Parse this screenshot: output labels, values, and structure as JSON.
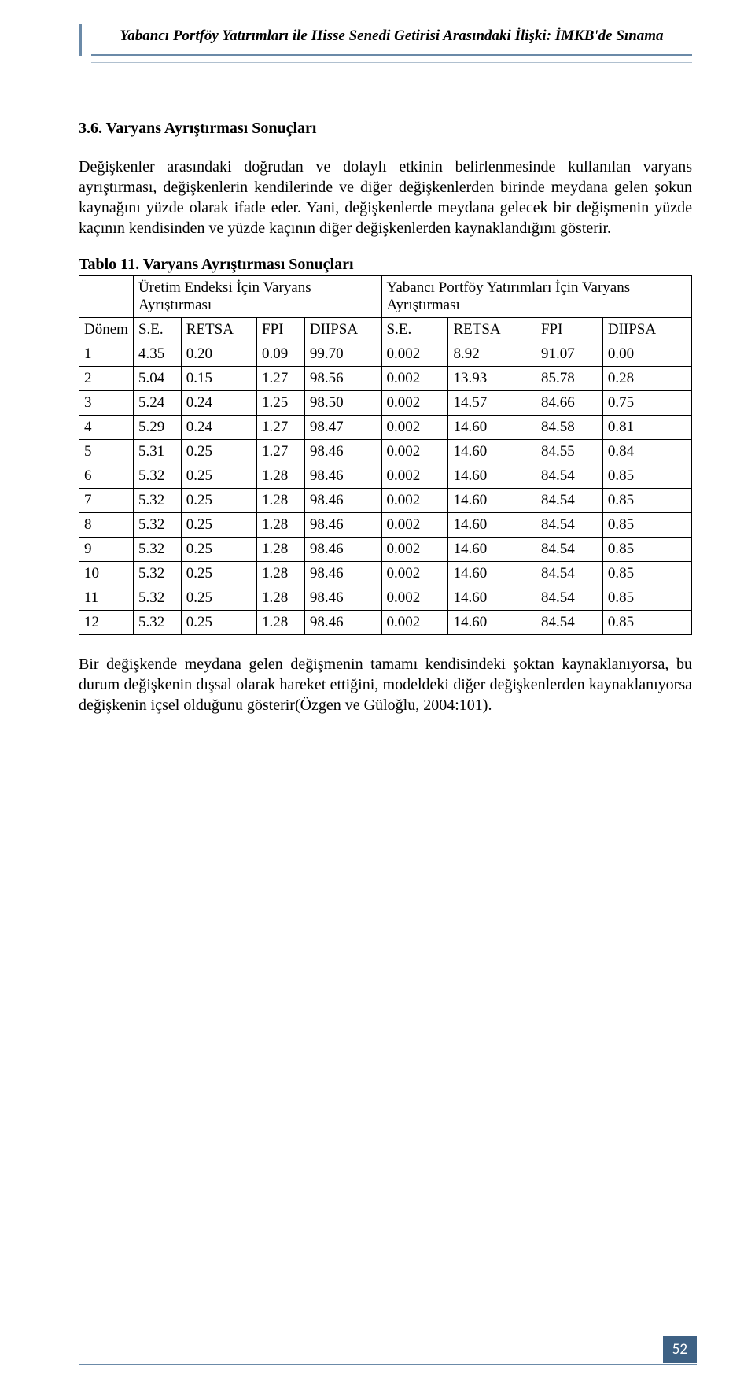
{
  "header": {
    "title": "Yabancı Portföy Yatırımları ile Hisse Senedi Getirisi Arasındaki İlişki: İMKB'de Sınama"
  },
  "section": {
    "heading": "3.6. Varyans Ayrıştırması Sonuçları"
  },
  "para1": "Değişkenler arasındaki doğrudan ve dolaylı etkinin belirlenmesinde kullanılan varyans ayrıştırması, değişkenlerin kendilerinde ve diğer değişkenlerden birinde meydana gelen şokun kaynağını yüzde olarak ifade eder. Yani, değişkenlerde meydana gelecek bir değişmenin yüzde kaçının kendisinden ve yüzde kaçının diğer değişkenlerden kaynaklandığını gösterir.",
  "table": {
    "caption": "Tablo 11.  Varyans Ayrıştırması Sonuçları",
    "group_headers": [
      "Üretim Endeksi İçin Varyans Ayrıştırması",
      "Yabancı Portföy Yatırımları İçin Varyans Ayrıştırması"
    ],
    "col_labels": [
      "Dönem",
      "S.E.",
      "RETSA",
      "FPI",
      "DIIPSA",
      "S.E.",
      "RETSA",
      "FPI",
      "DIIPSA"
    ],
    "rows": [
      [
        "1",
        "4.35",
        "0.20",
        "0.09",
        "99.70",
        "0.002",
        "8.92",
        "91.07",
        "0.00"
      ],
      [
        "2",
        "5.04",
        "0.15",
        "1.27",
        "98.56",
        "0.002",
        "13.93",
        "85.78",
        "0.28"
      ],
      [
        "3",
        "5.24",
        "0.24",
        "1.25",
        "98.50",
        "0.002",
        "14.57",
        "84.66",
        "0.75"
      ],
      [
        "4",
        "5.29",
        "0.24",
        "1.27",
        "98.47",
        "0.002",
        "14.60",
        "84.58",
        "0.81"
      ],
      [
        "5",
        "5.31",
        "0.25",
        "1.27",
        "98.46",
        "0.002",
        "14.60",
        "84.55",
        "0.84"
      ],
      [
        "6",
        "5.32",
        "0.25",
        "1.28",
        "98.46",
        "0.002",
        "14.60",
        "84.54",
        "0.85"
      ],
      [
        "7",
        "5.32",
        "0.25",
        "1.28",
        "98.46",
        "0.002",
        "14.60",
        "84.54",
        "0.85"
      ],
      [
        "8",
        "5.32",
        "0.25",
        "1.28",
        "98.46",
        "0.002",
        "14.60",
        "84.54",
        "0.85"
      ],
      [
        "9",
        "5.32",
        "0.25",
        "1.28",
        "98.46",
        "0.002",
        "14.60",
        "84.54",
        "0.85"
      ],
      [
        "10",
        "5.32",
        "0.25",
        "1.28",
        "98.46",
        "0.002",
        "14.60",
        "84.54",
        "0.85"
      ],
      [
        "11",
        "5.32",
        "0.25",
        "1.28",
        "98.46",
        "0.002",
        "14.60",
        "84.54",
        "0.85"
      ],
      [
        "12",
        "5.32",
        "0.25",
        "1.28",
        "98.46",
        "0.002",
        "14.60",
        "84.54",
        "0.85"
      ]
    ]
  },
  "para2": "Bir değişkende meydana gelen değişmenin tamamı kendisindeki şoktan kaynaklanıyorsa, bu durum değişkenin dışsal olarak hareket ettiğini, modeldeki diğer değişkenlerden kaynaklanıyorsa değişkenin içsel olduğunu gösterir(Özgen ve Güloğlu, 2004:101).",
  "page_number": "52",
  "style": {
    "accent_color": "#6b8aa8",
    "pagenum_bg": "#3e6184",
    "pagenum_fg": "#ffffff",
    "body_font": "Times New Roman",
    "base_fontsize_pt": 15
  }
}
